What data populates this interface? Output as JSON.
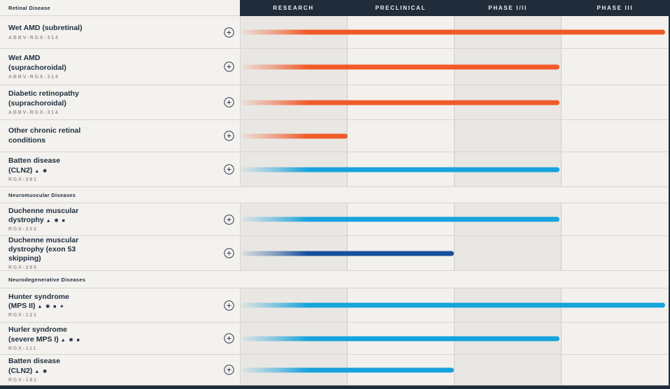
{
  "header": {
    "columns": [
      "Research",
      "Preclinical",
      "Phase I/II",
      "Phase III"
    ]
  },
  "palette": {
    "orange": "#f05a28",
    "blue": "#17a3dd",
    "dark_blue": "#164f9e",
    "navy": "#202c3a"
  },
  "sections": [
    {
      "label": "Retinal Disease",
      "rows": [
        {
          "lines": [
            "Wet AMD (subretinal)"
          ],
          "symbols": "",
          "code": "ABBV-RGX-314",
          "color": "orange",
          "phase_progress": 4,
          "phase_reached": "Phase III"
        },
        {
          "lines": [
            "Wet AMD",
            "(suprachoroidal)"
          ],
          "symbols": "",
          "code": "ABBV-RGX-314",
          "color": "orange",
          "phase_progress": 3,
          "phase_reached": "Phase I/II"
        },
        {
          "lines": [
            "Diabetic retinopathy",
            "(suprachoroidal)"
          ],
          "symbols": "",
          "code": "ABBV-RGX-314",
          "color": "orange",
          "phase_progress": 3,
          "phase_reached": "Phase I/II"
        },
        {
          "lines": [
            "Other chronic retinal",
            "conditions"
          ],
          "symbols": "",
          "code": "",
          "color": "orange",
          "phase_progress": 1,
          "phase_reached": "Research"
        },
        {
          "lines": [
            "Batten disease",
            "(CLN2)"
          ],
          "symbols": "▲ ✱",
          "code": "RGX-381",
          "color": "blue",
          "phase_progress": 3,
          "phase_reached": "Phase I/II"
        }
      ]
    },
    {
      "label": "Neuromuscular Diseases",
      "rows": [
        {
          "lines": [
            "Duchenne muscular",
            "dystrophy"
          ],
          "symbols": "▲ ✱ ■",
          "code": "RGX-202",
          "color": "blue",
          "phase_progress": 3,
          "phase_reached": "Phase I/II"
        },
        {
          "lines": [
            "Duchenne muscular",
            "dystrophy (exon 53",
            "skipping)"
          ],
          "symbols": "",
          "code": "RGX-295",
          "color": "dark_blue",
          "phase_progress": 2,
          "phase_reached": "Preclinical"
        }
      ]
    },
    {
      "label": "Neurodegenerative Diseases",
      "rows": [
        {
          "lines": [
            "Hunter syndrome",
            "(MPS II)"
          ],
          "symbols": "▲ ✱ ■ ✦",
          "code": "RGX-121",
          "color": "blue",
          "phase_progress": 4,
          "phase_reached": "Phase III"
        },
        {
          "lines": [
            "Hurler syndrome",
            "(severe MPS I)"
          ],
          "symbols": "▲ ✱ ■",
          "code": "RGX-111",
          "color": "blue",
          "phase_progress": 3,
          "phase_reached": "Phase I/II"
        },
        {
          "lines": [
            "Batten disease",
            "(CLN2)"
          ],
          "symbols": "▲ ✱",
          "code": "RGX-181",
          "color": "blue",
          "phase_progress": 2,
          "phase_reached": "Preclinical"
        }
      ]
    }
  ],
  "expand_icon": "circle-plus",
  "chart_data": {
    "type": "bar",
    "orientation": "horizontal",
    "x_categories": [
      "Research",
      "Preclinical",
      "Phase I/II",
      "Phase III"
    ],
    "grid": "vertical phase column bands",
    "legend": false,
    "series": [
      {
        "name": "Wet AMD (subretinal)",
        "code": "ABBV-RGX-314",
        "section": "Retinal Disease",
        "phase_reached": "Phase III",
        "phases_spanned": 4,
        "color": "#f05a28"
      },
      {
        "name": "Wet AMD (suprachoroidal)",
        "code": "ABBV-RGX-314",
        "section": "Retinal Disease",
        "phase_reached": "Phase I/II",
        "phases_spanned": 3,
        "color": "#f05a28"
      },
      {
        "name": "Diabetic retinopathy (suprachoroidal)",
        "code": "ABBV-RGX-314",
        "section": "Retinal Disease",
        "phase_reached": "Phase I/II",
        "phases_spanned": 3,
        "color": "#f05a28"
      },
      {
        "name": "Other chronic retinal conditions",
        "code": "",
        "section": "Retinal Disease",
        "phase_reached": "Research",
        "phases_spanned": 1,
        "color": "#f05a28"
      },
      {
        "name": "Batten disease (CLN2)",
        "code": "RGX-381",
        "section": "Retinal Disease",
        "phase_reached": "Phase I/II",
        "phases_spanned": 3,
        "color": "#17a3dd"
      },
      {
        "name": "Duchenne muscular dystrophy",
        "code": "RGX-202",
        "section": "Neuromuscular Diseases",
        "phase_reached": "Phase I/II",
        "phases_spanned": 3,
        "color": "#17a3dd"
      },
      {
        "name": "Duchenne muscular dystrophy (exon 53 skipping)",
        "code": "RGX-295",
        "section": "Neuromuscular Diseases",
        "phase_reached": "Preclinical",
        "phases_spanned": 2,
        "color": "#164f9e"
      },
      {
        "name": "Hunter syndrome (MPS II)",
        "code": "RGX-121",
        "section": "Neurodegenerative Diseases",
        "phase_reached": "Phase III",
        "phases_spanned": 4,
        "color": "#17a3dd"
      },
      {
        "name": "Hurler syndrome (severe MPS I)",
        "code": "RGX-111",
        "section": "Neurodegenerative Diseases",
        "phase_reached": "Phase I/II",
        "phases_spanned": 3,
        "color": "#17a3dd"
      },
      {
        "name": "Batten disease (CLN2)",
        "code": "RGX-181",
        "section": "Neurodegenerative Diseases",
        "phase_reached": "Preclinical",
        "phases_spanned": 2,
        "color": "#17a3dd"
      }
    ]
  }
}
